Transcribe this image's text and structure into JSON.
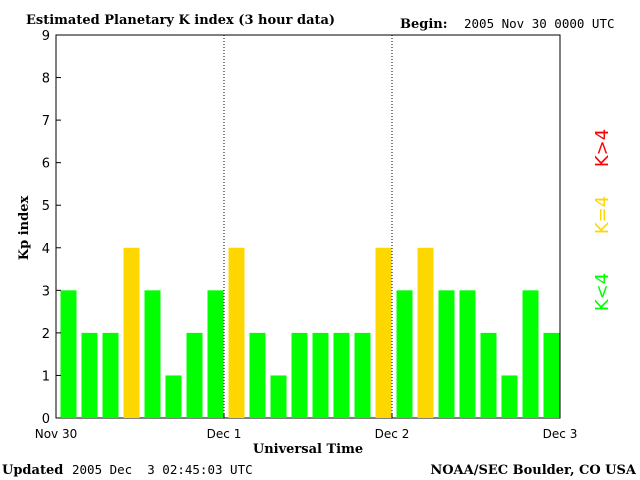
{
  "chart_data": {
    "type": "bar",
    "title": "Estimated Planetary K index (3 hour data)",
    "begin_label": "Begin:",
    "begin_value": "2005 Nov 30 0000 UTC",
    "xlabel": "Universal Time",
    "ylabel": "Kp index",
    "ylim": [
      0,
      9
    ],
    "y_ticks": [
      "0",
      "1",
      "2",
      "3",
      "4",
      "5",
      "6",
      "7",
      "8",
      "9"
    ],
    "x_tick_labels": [
      "Nov 30",
      "Dec 1",
      "Dec 2",
      "Dec 3"
    ],
    "day_dividers": [
      "Dec 1",
      "Dec 2"
    ],
    "values": [
      3,
      2,
      2,
      4,
      3,
      1,
      2,
      3,
      4,
      2,
      1,
      2,
      2,
      2,
      2,
      4,
      3,
      4,
      3,
      3,
      2,
      1,
      3,
      2
    ],
    "legend": [
      {
        "label": "K<4",
        "color": "#00ff00"
      },
      {
        "label": "K=4",
        "color": "#ffd700"
      },
      {
        "label": "K>4",
        "color": "#ff0000"
      }
    ],
    "colors": {
      "low": "#00ff00",
      "mid": "#ffd700",
      "high": "#ff0000"
    }
  },
  "footer": {
    "updated_label": "Updated",
    "updated_value": "2005 Dec  3 02:45:03 UTC",
    "credit": "NOAA/SEC Boulder, CO USA"
  }
}
